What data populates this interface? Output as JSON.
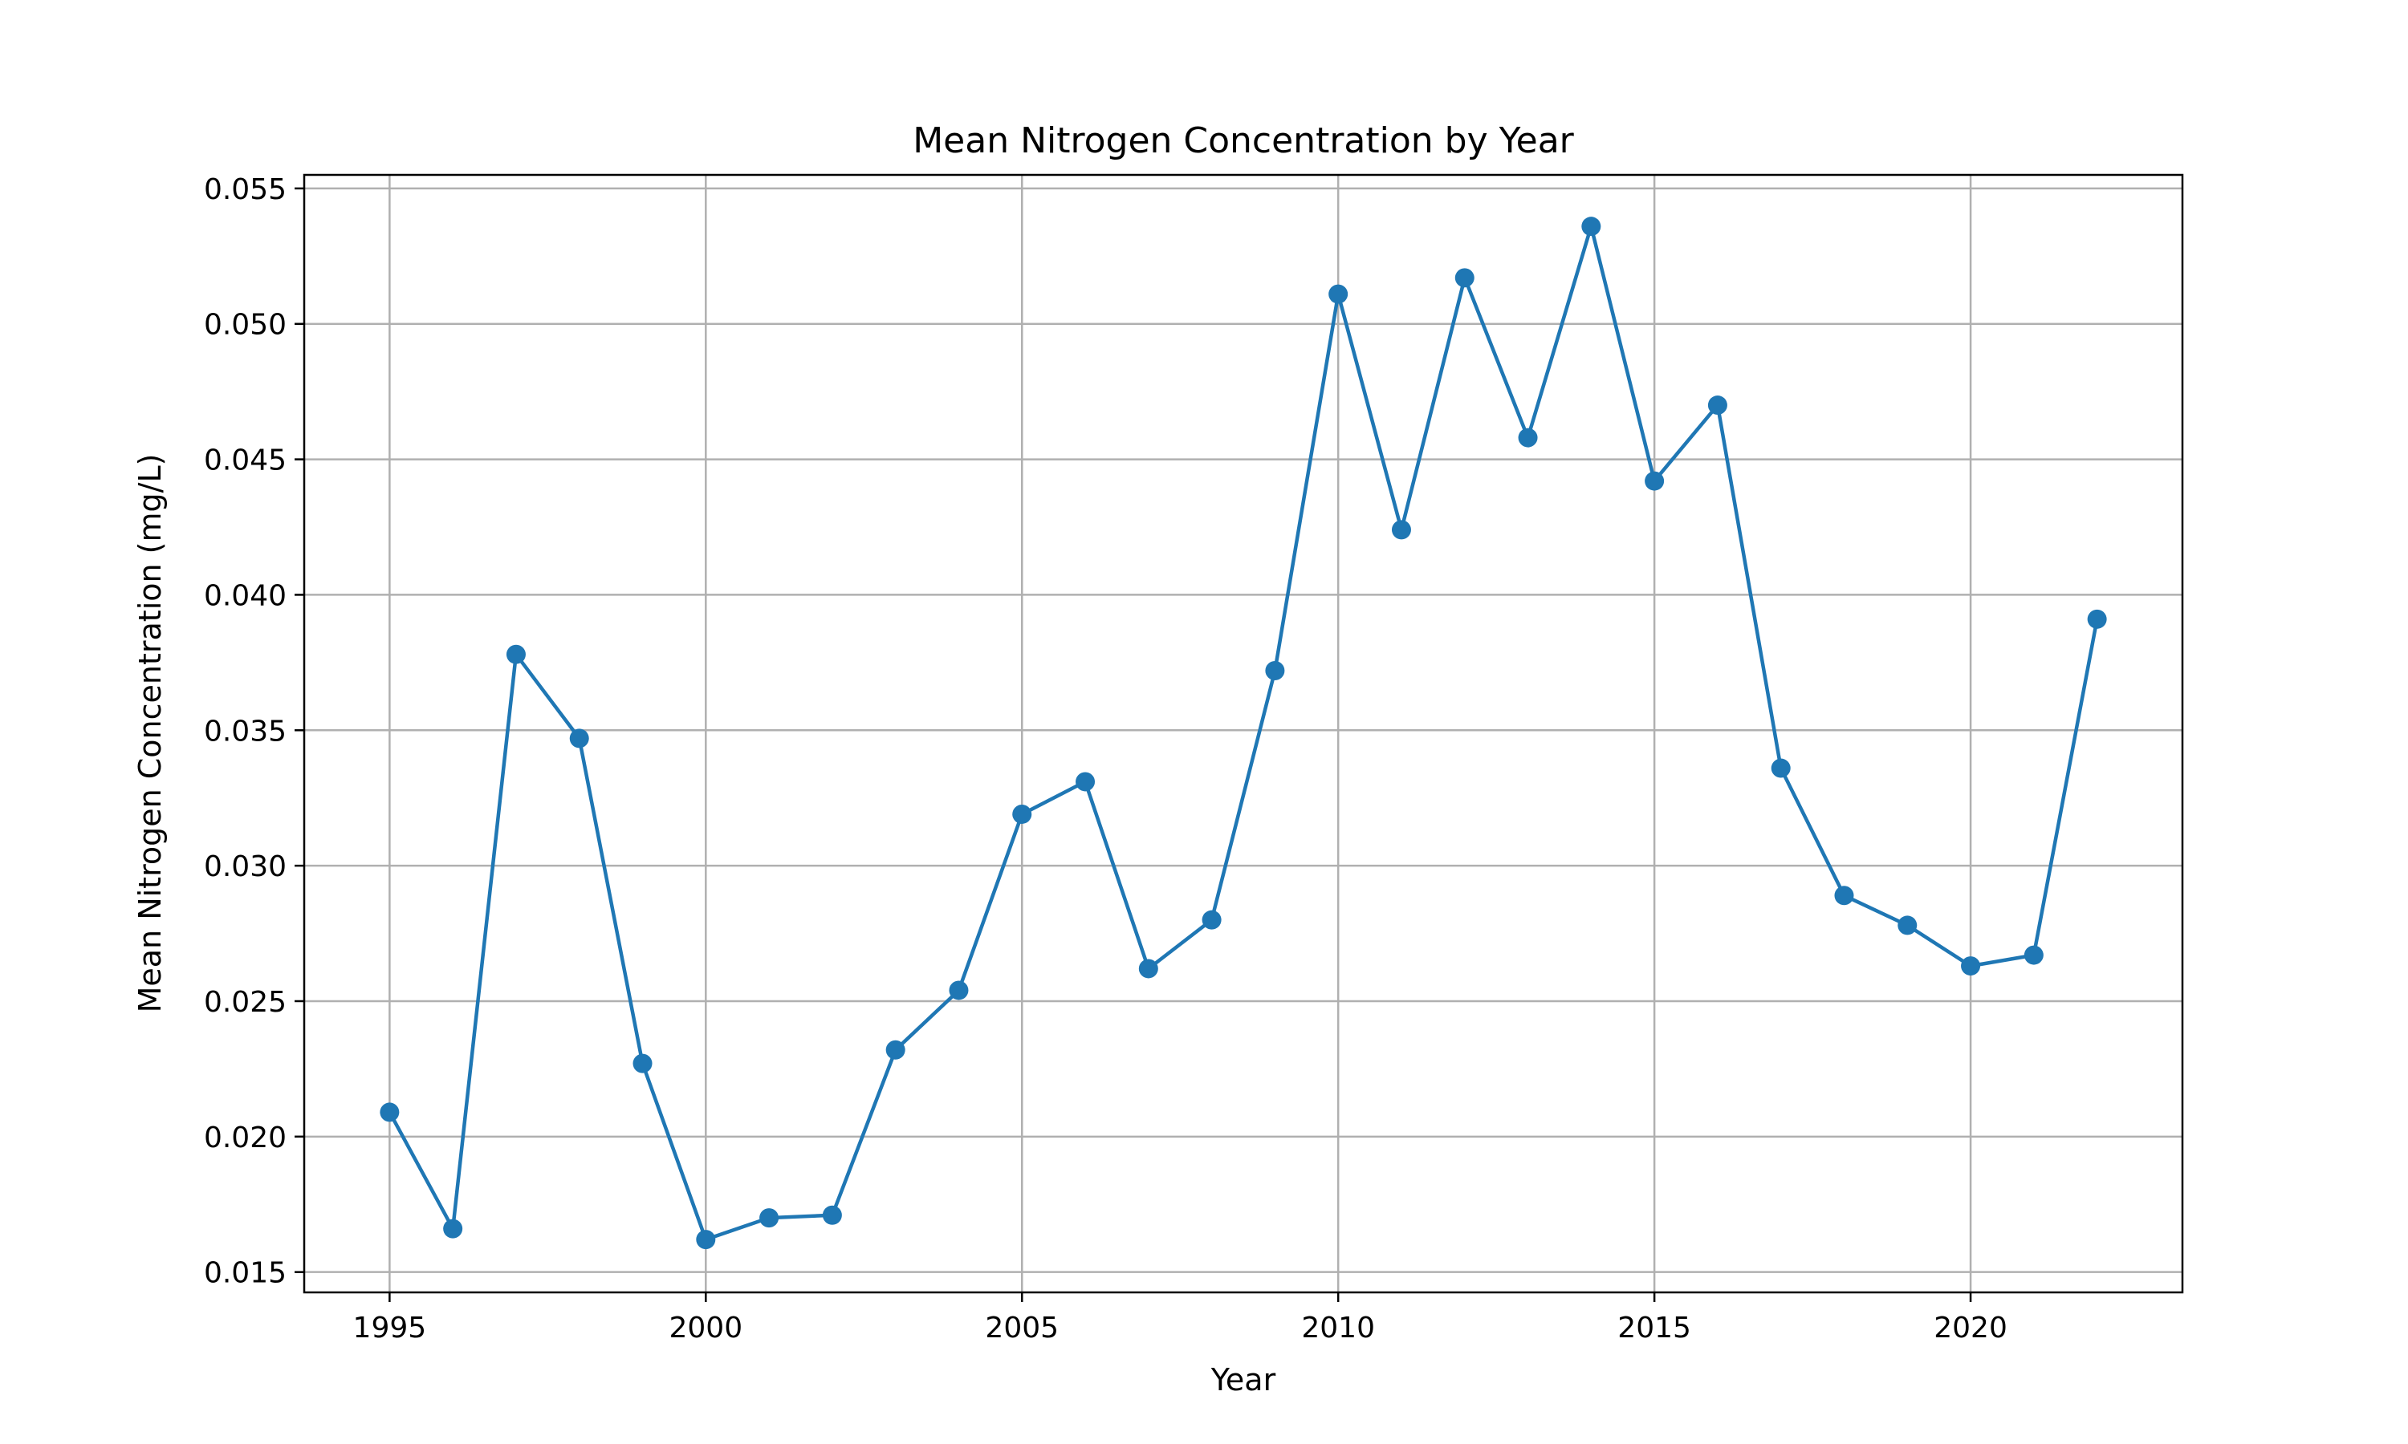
{
  "chart_data": {
    "type": "line",
    "title": "Mean Nitrogen Concentration by Year",
    "xlabel": "Year",
    "ylabel": "Mean Nitrogen Concentration (mg/L)",
    "xlim": [
      1993.65,
      2023.35
    ],
    "ylim": [
      0.01425,
      0.0555
    ],
    "xticks": [
      1995,
      2000,
      2005,
      2010,
      2015,
      2020
    ],
    "xtick_labels": [
      "1995",
      "2000",
      "2005",
      "2010",
      "2015",
      "2020"
    ],
    "yticks": [
      0.015,
      0.02,
      0.025,
      0.03,
      0.035,
      0.04,
      0.045,
      0.05,
      0.055
    ],
    "ytick_labels": [
      "0.015",
      "0.020",
      "0.025",
      "0.030",
      "0.035",
      "0.040",
      "0.045",
      "0.050",
      "0.055"
    ],
    "grid": true,
    "marker": "circle",
    "line_color": "#1f77b4",
    "series": [
      {
        "x": [
          1995,
          1996,
          1997,
          1998,
          1999,
          2000,
          2001,
          2002,
          2003,
          2004,
          2005,
          2006,
          2007,
          2008,
          2009,
          2010,
          2011,
          2012,
          2013,
          2014,
          2015,
          2016,
          2017,
          2018,
          2019,
          2020,
          2021,
          2022
        ],
        "values": [
          0.0209,
          0.0166,
          0.0378,
          0.0347,
          0.0227,
          0.0162,
          0.017,
          0.0171,
          0.0232,
          0.0254,
          0.0319,
          0.0331,
          0.0262,
          0.028,
          0.0372,
          0.0511,
          0.0424,
          0.0517,
          0.0458,
          0.0536,
          0.0442,
          0.047,
          0.0336,
          0.0289,
          0.0278,
          0.0263,
          0.0267,
          0.0391
        ]
      }
    ]
  }
}
